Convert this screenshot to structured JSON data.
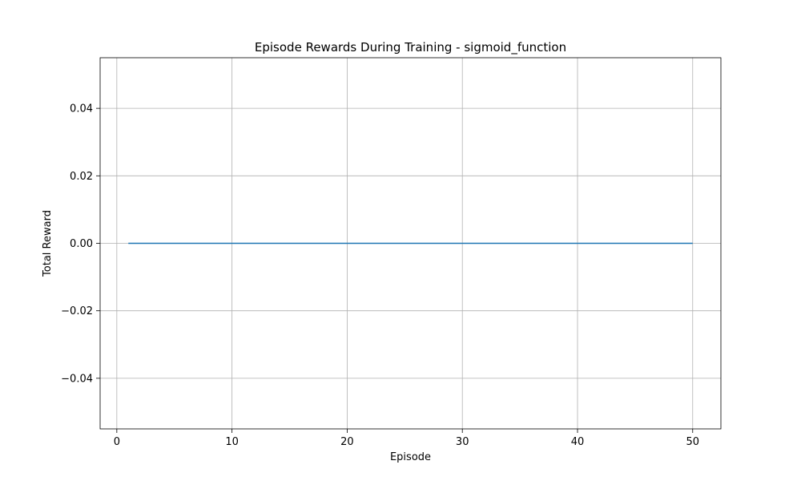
{
  "chart_data": {
    "type": "line",
    "title": "Episode Rewards During Training - sigmoid_function",
    "xlabel": "Episode",
    "ylabel": "Total Reward",
    "xlim": [
      -1.45,
      52.45
    ],
    "ylim": [
      -0.055,
      0.055
    ],
    "xticks": [
      0,
      10,
      20,
      30,
      40,
      50
    ],
    "xtick_labels": [
      "0",
      "10",
      "20",
      "30",
      "40",
      "50"
    ],
    "yticks": [
      -0.04,
      -0.02,
      0.0,
      0.02,
      0.04
    ],
    "ytick_labels": [
      "−0.04",
      "−0.02",
      "0.00",
      "0.02",
      "0.04"
    ],
    "grid": true,
    "series": [
      {
        "color": "#1f77b4",
        "x": [
          1,
          2,
          3,
          4,
          5,
          6,
          7,
          8,
          9,
          10,
          11,
          12,
          13,
          14,
          15,
          16,
          17,
          18,
          19,
          20,
          21,
          22,
          23,
          24,
          25,
          26,
          27,
          28,
          29,
          30,
          31,
          32,
          33,
          34,
          35,
          36,
          37,
          38,
          39,
          40,
          41,
          42,
          43,
          44,
          45,
          46,
          47,
          48,
          49,
          50
        ],
        "values": [
          0,
          0,
          0,
          0,
          0,
          0,
          0,
          0,
          0,
          0,
          0,
          0,
          0,
          0,
          0,
          0,
          0,
          0,
          0,
          0,
          0,
          0,
          0,
          0,
          0,
          0,
          0,
          0,
          0,
          0,
          0,
          0,
          0,
          0,
          0,
          0,
          0,
          0,
          0,
          0,
          0,
          0,
          0,
          0,
          0,
          0,
          0,
          0,
          0,
          0
        ]
      }
    ]
  }
}
